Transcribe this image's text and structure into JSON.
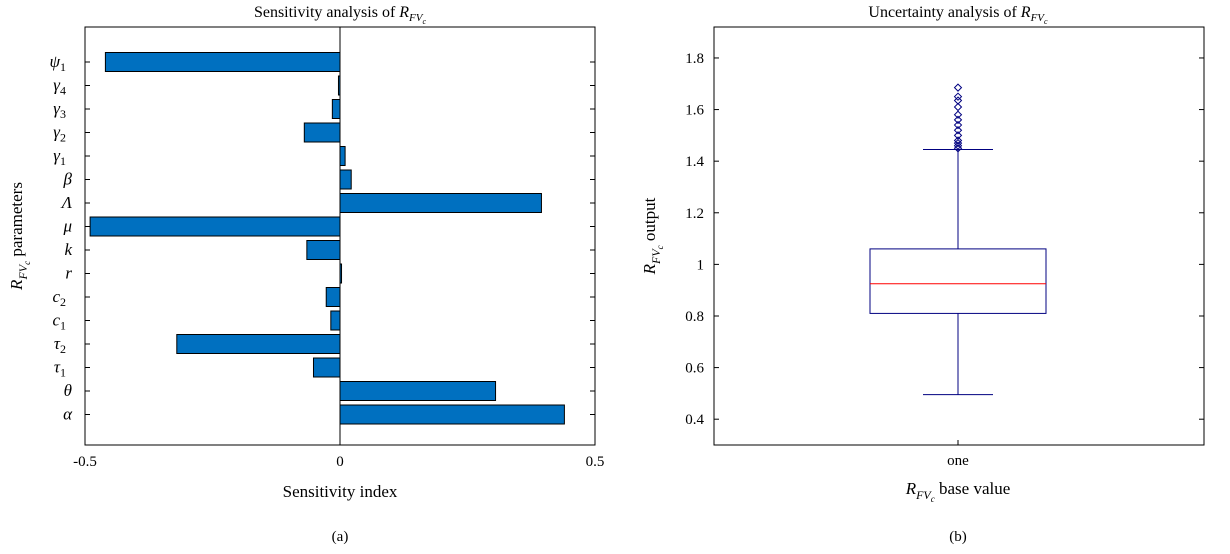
{
  "chart_data": [
    {
      "type": "bar",
      "orientation": "horizontal",
      "title": "Sensitivity analysis of R_FVc",
      "title_text": "Sensitivity analysis of ",
      "xlabel": "Sensitivity index",
      "ylabel": "R_FVc parameters",
      "ylabel_suffix": " parameters",
      "caption": "(a)",
      "xlim": [
        -0.5,
        0.5
      ],
      "xticks": [
        -0.5,
        0,
        0.5
      ],
      "xtick_labels": [
        "-0.5",
        "0",
        "0.5"
      ],
      "categories": [
        "ψ1",
        "γ4",
        "γ3",
        "γ2",
        "γ1",
        "β",
        "Λ",
        "μ",
        "k",
        "r",
        "c2",
        "c1",
        "τ2",
        "τ1",
        "θ",
        "α"
      ],
      "category_labels": [
        {
          "base": "ψ",
          "sub": "1"
        },
        {
          "base": "γ",
          "sub": "4"
        },
        {
          "base": "γ",
          "sub": "3"
        },
        {
          "base": "γ",
          "sub": "2"
        },
        {
          "base": "γ",
          "sub": "1"
        },
        {
          "base": "β",
          "sub": ""
        },
        {
          "base": "Λ",
          "sub": ""
        },
        {
          "base": "μ",
          "sub": ""
        },
        {
          "base": "k",
          "sub": ""
        },
        {
          "base": "r",
          "sub": ""
        },
        {
          "base": "c",
          "sub": "2"
        },
        {
          "base": "c",
          "sub": "1"
        },
        {
          "base": "τ",
          "sub": "2"
        },
        {
          "base": "τ",
          "sub": "1"
        },
        {
          "base": "θ",
          "sub": ""
        },
        {
          "base": "α",
          "sub": ""
        }
      ],
      "values": [
        -0.46,
        -0.003,
        -0.015,
        -0.07,
        0.01,
        0.022,
        0.395,
        -0.49,
        -0.065,
        0.003,
        -0.027,
        -0.018,
        -0.32,
        -0.052,
        0.305,
        0.44
      ],
      "bar_color": "#0070c0",
      "grid": false
    },
    {
      "type": "box",
      "title": "Uncertainty analysis of R_FVc",
      "title_text": "Uncertainty analysis of ",
      "xlabel": "R_FVc base value",
      "xlabel_suffix": " base value",
      "ylabel": "R_FVc output",
      "ylabel_suffix": " output",
      "caption": "(b)",
      "categories": [
        "one"
      ],
      "ylim": [
        0.3,
        1.92
      ],
      "yticks": [
        0.4,
        0.6,
        0.8,
        1,
        1.2,
        1.4,
        1.6,
        1.8
      ],
      "ytick_labels": [
        "0.4",
        "0.6",
        "0.8",
        "1",
        "1.2",
        "1.4",
        "1.6",
        "1.8"
      ],
      "box": {
        "whisker_low": 0.495,
        "q1": 0.81,
        "median": 0.925,
        "q3": 1.06,
        "whisker_high": 1.445
      },
      "outliers": [
        1.45,
        1.46,
        1.47,
        1.48,
        1.5,
        1.52,
        1.54,
        1.56,
        1.58,
        1.61,
        1.635,
        1.65,
        1.685
      ],
      "box_color": "#000080",
      "median_color": "#ff0000",
      "grid": false
    }
  ]
}
